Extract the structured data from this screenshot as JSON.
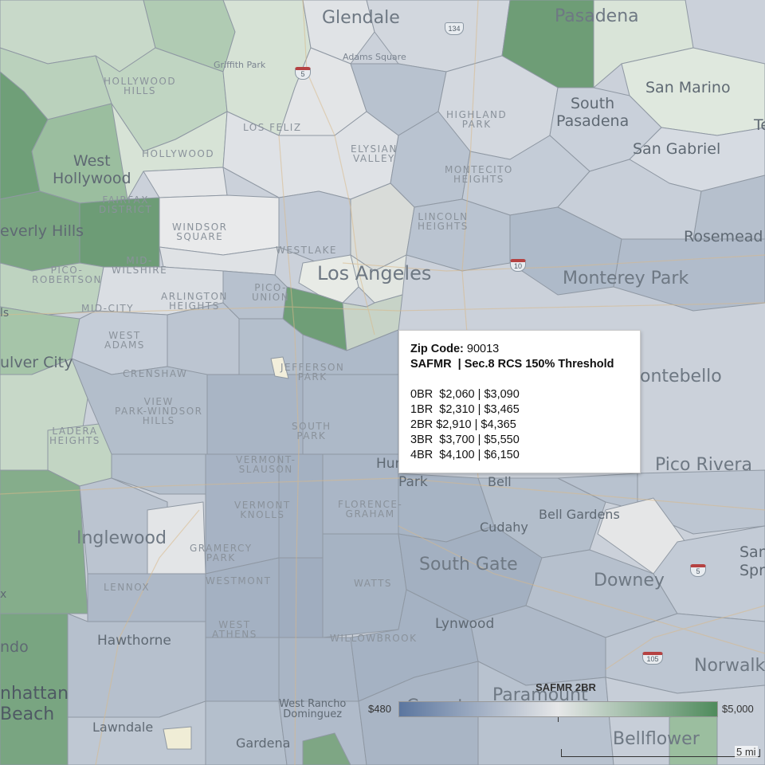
{
  "map": {
    "places": {
      "glendale": "Glendale",
      "pasadena": "Pasadena",
      "san_marino": "San Marino",
      "south_pasadena": "South\nPasadena",
      "san_gabriel": "San Gabriel",
      "rosemead": "Rosemead",
      "monterey_park": "Monterey Park",
      "montebello": "ontebello",
      "pico_rivera": "Pico Rivera",
      "los_angeles": "Los Angeles",
      "west_hollywood": "West\nHollywood",
      "beverly_hills": "everly Hills",
      "culver_city": "ulver City",
      "inglewood": "Inglewood",
      "hawthorne": "Hawthorne",
      "lawndale": "Lawndale",
      "gardena": "Gardena",
      "south_gate": "South Gate",
      "downey": "Downey",
      "norwalk": "Norwalk",
      "bellflower": "Bellflower",
      "lynwood": "Lynwood",
      "cudahy": "Cudahy",
      "bell_gardens": "Bell Gardens",
      "bell": "Bell",
      "huntington_park_top": "Hun",
      "huntington_park_bottom": "Park",
      "paramount": "Paramount",
      "compton": "Compton",
      "manhattan_beach": "nhattan\nBeach",
      "redondo": "ndo",
      "west_rancho": "West Rancho\nDominguez",
      "san_right": "San\nSpr",
      "te_right": "Te",
      "hills_left": "ls",
      "x_left": "x"
    },
    "neighborhoods": {
      "hollywood_hills": "HOLLYWOOD\nHILLS",
      "los_feliz": "LOS FELIZ",
      "hollywood": "HOLLYWOOD",
      "fairfax": "FAIRFAX\nDISTRICT",
      "windsor_square": "WINDSOR\nSQUARE",
      "mid_wilshire": "MID-\nWILSHIRE",
      "westlake": "WESTLAKE",
      "pico_robertson": "PICO-\nROBERTSON",
      "mid_city": "MID-CITY",
      "arlington_heights": "ARLINGTON\nHEIGHTS",
      "pico_union": "PICO-\nUNION",
      "west_adams": "WEST\nADAMS",
      "crenshaw": "CRENSHAW",
      "jefferson_park": "JEFFERSON\nPARK",
      "view_park": "VIEW\nPARK-WINDSOR\nHILLS",
      "ladera_heights": "LADERA\nHEIGHTS",
      "south_park": "SOUTH\nPARK",
      "vermont_slauson": "VERMONT-\nSLAUSON",
      "vermont_knolls": "VERMONT\nKNOLLS",
      "florence_graham": "FLORENCE-\nGRAHAM",
      "gramercy_park": "GRAMERCY\nPARK",
      "westmont": "WESTMONT",
      "lennox": "LENNOX",
      "watts": "WATTS",
      "west_athens": "WEST\nATHENS",
      "willowbrook": "WILLOWBROOK",
      "elysian_valley": "ELYSIAN\nVALLEY",
      "highland_park": "HIGHLAND\nPARK",
      "montecito_heights": "MONTECITO\nHEIGHTS",
      "lincoln_heights": "LINCOLN\nHEIGHTS"
    },
    "pois": {
      "griffith_park": "Griffith Park",
      "adams_square": "Adams Square"
    },
    "shields": {
      "i5_north": "5",
      "i10": "10",
      "i5_south": "5",
      "i105": "105",
      "us134": "134"
    }
  },
  "tooltip": {
    "zip_label": "Zip Code:",
    "zip_value": "90013",
    "header": "SAFMR  | Sec.8 RCS 150% Threshold",
    "rows": [
      "0BR  $2,060 | $3,090",
      "1BR  $2,310 | $3,465",
      "2BR $2,910 | $4,365",
      "3BR  $3,700 | $5,550",
      "4BR  $4,100 | $6,150"
    ]
  },
  "legend": {
    "title": "SAFMR 2BR",
    "min_label": "$480",
    "max_label": "$5,000",
    "min_value": 480,
    "max_value": 5000,
    "colors": {
      "low": "#5b769f",
      "mid": "#e6e7e8",
      "high": "#4f8b5c"
    }
  },
  "scale": {
    "label": "5 mi"
  }
}
